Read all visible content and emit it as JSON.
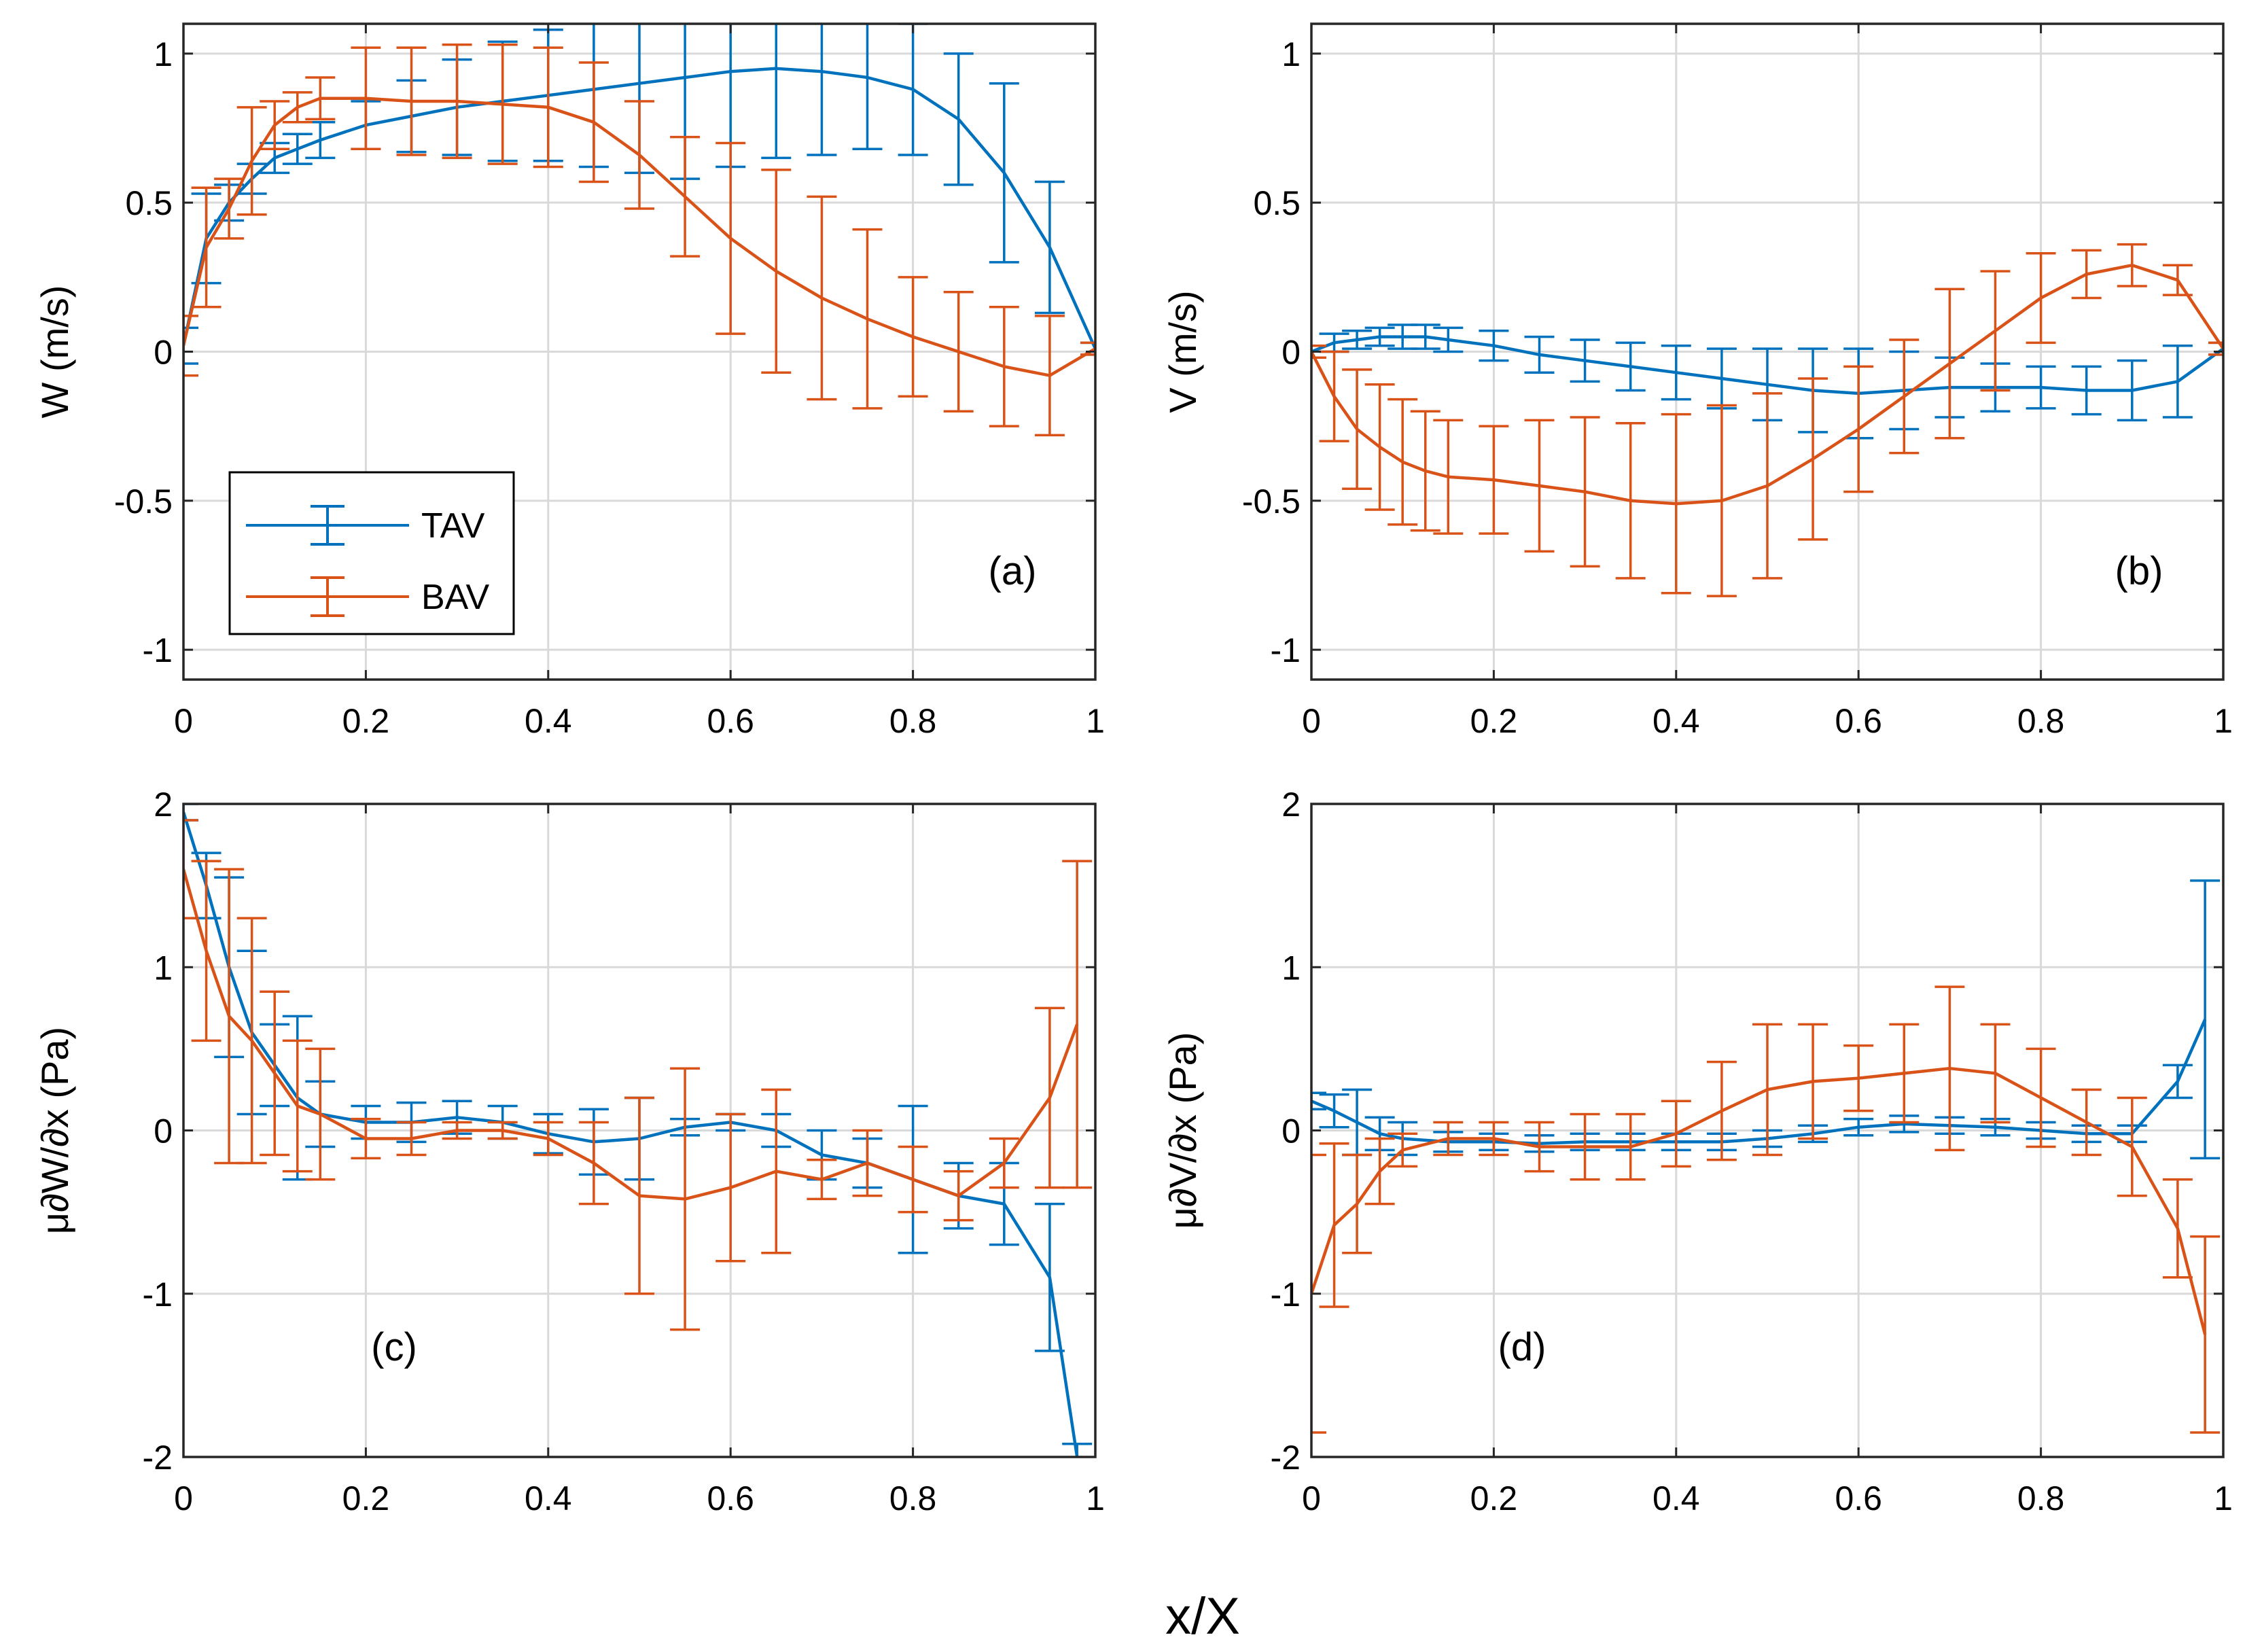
{
  "figure": {
    "xlabel": "x/X",
    "series_colors": {
      "TAV": "#0072BD",
      "BAV": "#D95319"
    },
    "grid_color": "#d9d9d9"
  },
  "legend": {
    "entries": [
      {
        "name": "TAV",
        "color": "#0072BD"
      },
      {
        "name": "BAV",
        "color": "#D95319"
      }
    ]
  },
  "chart_data": [
    {
      "id": "a",
      "type": "line",
      "tag": "(a)",
      "ylabel": "W (m/s)",
      "xlim": [
        0,
        1
      ],
      "ylim": [
        -1.1,
        1.1
      ],
      "xticks": [
        0,
        0.2,
        0.4,
        0.6,
        0.8,
        1
      ],
      "xtick_labels": [
        "0",
        "0.2",
        "0.4",
        "0.6",
        "0.8",
        "1"
      ],
      "yticks": [
        -1,
        -0.5,
        0,
        0.5,
        1
      ],
      "ytick_labels": [
        "-1",
        "-0.5",
        "0",
        "0.5",
        "1"
      ],
      "grid": true,
      "legend": "bottom-left",
      "series": [
        {
          "name": "TAV",
          "x": [
            0,
            0.025,
            0.05,
            0.075,
            0.1,
            0.125,
            0.15,
            0.2,
            0.25,
            0.3,
            0.35,
            0.4,
            0.45,
            0.5,
            0.55,
            0.6,
            0.65,
            0.7,
            0.75,
            0.8,
            0.85,
            0.9,
            0.95,
            1
          ],
          "y": [
            0.02,
            0.38,
            0.5,
            0.58,
            0.65,
            0.68,
            0.71,
            0.76,
            0.79,
            0.82,
            0.84,
            0.86,
            0.88,
            0.9,
            0.92,
            0.94,
            0.95,
            0.94,
            0.92,
            0.88,
            0.78,
            0.6,
            0.35,
            0.01
          ],
          "err": [
            0.06,
            0.15,
            0.06,
            0.05,
            0.05,
            0.05,
            0.06,
            0.08,
            0.12,
            0.16,
            0.2,
            0.22,
            0.26,
            0.3,
            0.34,
            0.32,
            0.3,
            0.28,
            0.24,
            0.22,
            0.22,
            0.3,
            0.22,
            0.02
          ]
        },
        {
          "name": "BAV",
          "x": [
            0,
            0.025,
            0.05,
            0.075,
            0.1,
            0.125,
            0.15,
            0.2,
            0.25,
            0.3,
            0.35,
            0.4,
            0.45,
            0.5,
            0.55,
            0.6,
            0.65,
            0.7,
            0.75,
            0.8,
            0.85,
            0.9,
            0.95,
            1
          ],
          "y": [
            0.02,
            0.35,
            0.48,
            0.64,
            0.76,
            0.82,
            0.85,
            0.85,
            0.84,
            0.84,
            0.83,
            0.82,
            0.77,
            0.66,
            0.52,
            0.38,
            0.27,
            0.18,
            0.11,
            0.05,
            0,
            -0.05,
            -0.08,
            0.01
          ],
          "err": [
            0.1,
            0.2,
            0.1,
            0.18,
            0.08,
            0.05,
            0.07,
            0.17,
            0.18,
            0.19,
            0.2,
            0.2,
            0.2,
            0.18,
            0.2,
            0.32,
            0.34,
            0.34,
            0.3,
            0.2,
            0.2,
            0.2,
            0.2,
            0.02
          ]
        }
      ]
    },
    {
      "id": "b",
      "type": "line",
      "tag": "(b)",
      "ylabel": "V (m/s)",
      "xlim": [
        0,
        1
      ],
      "ylim": [
        -1.1,
        1.1
      ],
      "xticks": [
        0,
        0.2,
        0.4,
        0.6,
        0.8,
        1
      ],
      "xtick_labels": [
        "0",
        "0.2",
        "0.4",
        "0.6",
        "0.8",
        "1"
      ],
      "yticks": [
        -1,
        -0.5,
        0,
        0.5,
        1
      ],
      "ytick_labels": [
        "-1",
        "-0.5",
        "0",
        "0.5",
        "1"
      ],
      "grid": true,
      "series": [
        {
          "name": "TAV",
          "x": [
            0,
            0.025,
            0.05,
            0.075,
            0.1,
            0.125,
            0.15,
            0.2,
            0.25,
            0.3,
            0.35,
            0.4,
            0.45,
            0.5,
            0.55,
            0.6,
            0.65,
            0.7,
            0.75,
            0.8,
            0.85,
            0.9,
            0.95,
            1
          ],
          "y": [
            0,
            0.03,
            0.04,
            0.05,
            0.05,
            0.05,
            0.04,
            0.02,
            -0.01,
            -0.03,
            -0.05,
            -0.07,
            -0.09,
            -0.11,
            -0.13,
            -0.14,
            -0.13,
            -0.12,
            -0.12,
            -0.12,
            -0.13,
            -0.13,
            -0.1,
            0.01
          ],
          "err": [
            0.02,
            0.03,
            0.03,
            0.03,
            0.04,
            0.04,
            0.04,
            0.05,
            0.06,
            0.07,
            0.08,
            0.09,
            0.1,
            0.12,
            0.14,
            0.15,
            0.13,
            0.1,
            0.08,
            0.07,
            0.08,
            0.1,
            0.12,
            0.02
          ]
        },
        {
          "name": "BAV",
          "x": [
            0,
            0.025,
            0.05,
            0.075,
            0.1,
            0.125,
            0.15,
            0.2,
            0.25,
            0.3,
            0.35,
            0.4,
            0.45,
            0.5,
            0.55,
            0.6,
            0.65,
            0.7,
            0.75,
            0.8,
            0.85,
            0.9,
            0.95,
            1
          ],
          "y": [
            0,
            -0.15,
            -0.26,
            -0.32,
            -0.37,
            -0.4,
            -0.42,
            -0.43,
            -0.45,
            -0.47,
            -0.5,
            -0.51,
            -0.5,
            -0.45,
            -0.36,
            -0.26,
            -0.15,
            -0.04,
            0.07,
            0.18,
            0.26,
            0.29,
            0.24,
            0.01
          ],
          "err": [
            0.02,
            0.15,
            0.2,
            0.21,
            0.21,
            0.2,
            0.19,
            0.18,
            0.22,
            0.25,
            0.26,
            0.3,
            0.32,
            0.31,
            0.27,
            0.21,
            0.19,
            0.25,
            0.2,
            0.15,
            0.08,
            0.07,
            0.05,
            0.02
          ]
        }
      ]
    },
    {
      "id": "c",
      "type": "line",
      "tag": "(c)",
      "ylabel": "μ∂W/∂x  (Pa)",
      "xlim": [
        0,
        1
      ],
      "ylim": [
        -2,
        2
      ],
      "xticks": [
        0,
        0.2,
        0.4,
        0.6,
        0.8,
        1
      ],
      "xtick_labels": [
        "0",
        "0.2",
        "0.4",
        "0.6",
        "0.8",
        "1"
      ],
      "yticks": [
        -2,
        -1,
        0,
        1,
        2
      ],
      "ytick_labels": [
        "-2",
        "-1",
        "0",
        "1",
        "2"
      ],
      "grid": true,
      "series": [
        {
          "name": "TAV",
          "x": [
            0,
            0.025,
            0.05,
            0.075,
            0.1,
            0.125,
            0.15,
            0.2,
            0.25,
            0.3,
            0.35,
            0.4,
            0.45,
            0.5,
            0.55,
            0.6,
            0.65,
            0.7,
            0.75,
            0.8,
            0.85,
            0.9,
            0.95,
            0.98
          ],
          "y": [
            1.95,
            1.5,
            1.0,
            0.6,
            0.4,
            0.2,
            0.1,
            0.05,
            0.05,
            0.08,
            0.05,
            -0.02,
            -0.07,
            -0.05,
            0.02,
            0.05,
            0,
            -0.15,
            -0.2,
            -0.3,
            -0.4,
            -0.45,
            -0.9,
            -2.0
          ],
          "err": [
            0.05,
            0.2,
            0.55,
            0.5,
            0.25,
            0.5,
            0.2,
            0.1,
            0.12,
            0.1,
            0.1,
            0.12,
            0.2,
            0.25,
            0.05,
            0.05,
            0.1,
            0.15,
            0.15,
            0.45,
            0.2,
            0.25,
            0.45,
            0.08
          ]
        },
        {
          "name": "BAV",
          "x": [
            0,
            0.025,
            0.05,
            0.075,
            0.1,
            0.125,
            0.15,
            0.2,
            0.25,
            0.3,
            0.35,
            0.4,
            0.45,
            0.5,
            0.55,
            0.6,
            0.65,
            0.7,
            0.75,
            0.8,
            0.85,
            0.9,
            0.95,
            0.98
          ],
          "y": [
            1.6,
            1.1,
            0.7,
            0.55,
            0.35,
            0.15,
            0.1,
            -0.05,
            -0.05,
            0,
            0,
            -0.05,
            -0.2,
            -0.4,
            -0.42,
            -0.35,
            -0.25,
            -0.3,
            -0.2,
            -0.3,
            -0.4,
            -0.2,
            0.2,
            0.65
          ],
          "err": [
            0.3,
            0.55,
            0.9,
            0.75,
            0.5,
            0.4,
            0.4,
            0.12,
            0.1,
            0.05,
            0.05,
            0.1,
            0.25,
            0.6,
            0.8,
            0.45,
            0.5,
            0.12,
            0.2,
            0.2,
            0.15,
            0.15,
            0.55,
            1.0
          ]
        }
      ]
    },
    {
      "id": "d",
      "type": "line",
      "tag": "(d)",
      "ylabel": "μ∂V/∂x  (Pa)",
      "xlim": [
        0,
        1
      ],
      "ylim": [
        -2,
        2
      ],
      "xticks": [
        0,
        0.2,
        0.4,
        0.6,
        0.8,
        1
      ],
      "xtick_labels": [
        "0",
        "0.2",
        "0.4",
        "0.6",
        "0.8",
        "1"
      ],
      "yticks": [
        -2,
        -1,
        0,
        1,
        2
      ],
      "ytick_labels": [
        "-2",
        "-1",
        "0",
        "1",
        "2"
      ],
      "grid": true,
      "series": [
        {
          "name": "TAV",
          "x": [
            0,
            0.025,
            0.05,
            0.075,
            0.1,
            0.15,
            0.2,
            0.25,
            0.3,
            0.35,
            0.4,
            0.45,
            0.5,
            0.55,
            0.6,
            0.65,
            0.7,
            0.75,
            0.8,
            0.85,
            0.9,
            0.95,
            0.98
          ],
          "y": [
            0.18,
            0.12,
            0.05,
            -0.02,
            -0.05,
            -0.07,
            -0.07,
            -0.08,
            -0.07,
            -0.07,
            -0.07,
            -0.07,
            -0.05,
            -0.02,
            0.02,
            0.04,
            0.03,
            0.02,
            0,
            -0.02,
            -0.02,
            0.3,
            0.68
          ],
          "err": [
            0.05,
            0.1,
            0.2,
            0.1,
            0.1,
            0.06,
            0.05,
            0.05,
            0.05,
            0.05,
            0.05,
            0.05,
            0.05,
            0.05,
            0.05,
            0.05,
            0.05,
            0.05,
            0.05,
            0.05,
            0.05,
            0.1,
            0.85
          ]
        },
        {
          "name": "BAV",
          "x": [
            0,
            0.025,
            0.05,
            0.075,
            0.1,
            0.15,
            0.2,
            0.25,
            0.3,
            0.35,
            0.4,
            0.45,
            0.5,
            0.55,
            0.6,
            0.65,
            0.7,
            0.75,
            0.8,
            0.85,
            0.9,
            0.95,
            0.98
          ],
          "y": [
            -1.0,
            -0.58,
            -0.45,
            -0.25,
            -0.12,
            -0.05,
            -0.05,
            -0.1,
            -0.1,
            -0.1,
            -0.02,
            0.12,
            0.25,
            0.3,
            0.32,
            0.35,
            0.38,
            0.35,
            0.2,
            0.05,
            -0.1,
            -0.6,
            -1.25
          ],
          "err": [
            0.85,
            0.5,
            0.3,
            0.2,
            0.1,
            0.1,
            0.1,
            0.15,
            0.2,
            0.2,
            0.2,
            0.3,
            0.4,
            0.35,
            0.2,
            0.3,
            0.5,
            0.3,
            0.3,
            0.2,
            0.3,
            0.3,
            0.6
          ]
        }
      ]
    }
  ]
}
